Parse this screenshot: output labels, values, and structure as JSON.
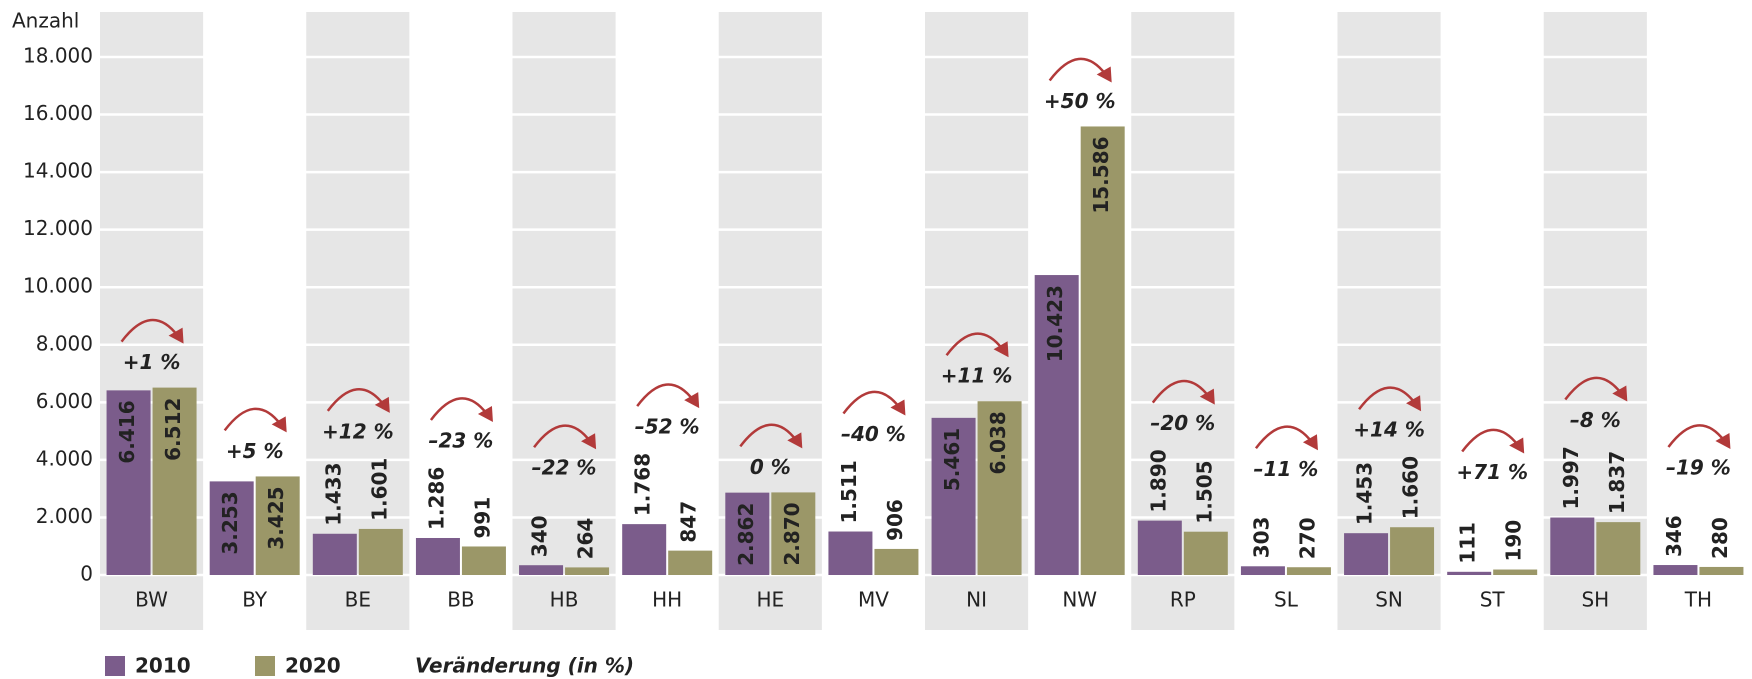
{
  "chart_data": {
    "type": "bar",
    "y_label": "Anzahl",
    "categories": [
      "BW",
      "BY",
      "BE",
      "BB",
      "HB",
      "HH",
      "HE",
      "MV",
      "NI",
      "NW",
      "RP",
      "SL",
      "SN",
      "ST",
      "SH",
      "TH"
    ],
    "series": [
      {
        "name": "2010",
        "color": "#7b5c8b",
        "values": [
          6416,
          3253,
          1433,
          1286,
          340,
          1768,
          2862,
          1511,
          5461,
          10423,
          1890,
          303,
          1453,
          111,
          1997,
          346
        ],
        "value_labels": [
          "6.416",
          "3.253",
          "1.433",
          "1.286",
          "340",
          "1.768",
          "2.862",
          "1.511",
          "5.461",
          "10.423",
          "1.890",
          "303",
          "1.453",
          "111",
          "1.997",
          "346"
        ]
      },
      {
        "name": "2020",
        "color": "#9b9768",
        "values": [
          6512,
          3425,
          1601,
          991,
          264,
          847,
          2870,
          906,
          6038,
          15586,
          1505,
          270,
          1660,
          190,
          1837,
          280
        ],
        "value_labels": [
          "6.512",
          "3.425",
          "1.601",
          "991",
          "264",
          "847",
          "2.870",
          "906",
          "6.038",
          "15.586",
          "1.505",
          "270",
          "1.660",
          "190",
          "1.837",
          "280"
        ]
      }
    ],
    "change_label": "Veränderung (in %)",
    "change_labels": [
      "+1 %",
      "+5 %",
      "+12 %",
      "–23 %",
      "–22 %",
      "–52 %",
      "0 %",
      "–40 %",
      "+11 %",
      "+50 %",
      "–20 %",
      "–11 %",
      "+14 %",
      "+71 %",
      "–8 %",
      "–19 %"
    ],
    "change_color": "#b23a3a",
    "ylim": [
      0,
      18000
    ],
    "yticks": [
      0,
      {
        "value": 2000,
        "label": "2.000"
      },
      {
        "value": 4000,
        "label": "4.000"
      },
      {
        "value": 6000,
        "label": "6.000"
      },
      {
        "value": 8000,
        "label": "8.000"
      },
      {
        "value": 10000,
        "label": "10.000"
      },
      {
        "value": 12000,
        "label": "12.000"
      },
      {
        "value": 14000,
        "label": "14.000"
      },
      {
        "value": 16000,
        "label": "16.000"
      },
      {
        "value": 18000,
        "label": "18.000"
      }
    ],
    "grid": true
  }
}
